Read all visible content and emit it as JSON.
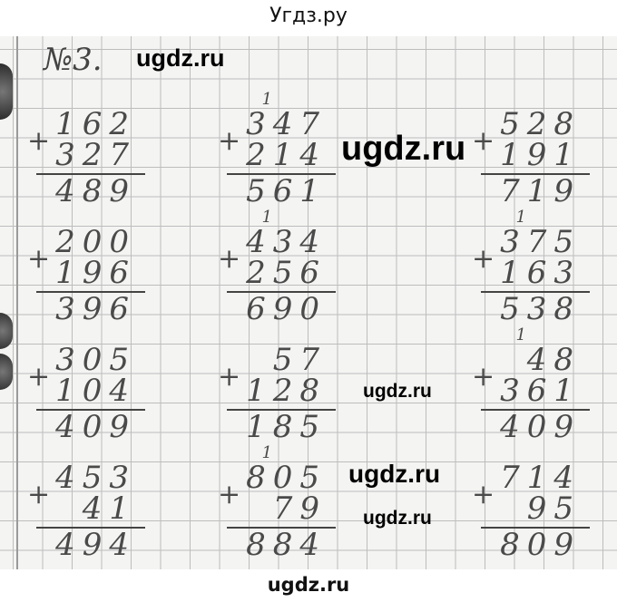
{
  "header": {
    "title": "Угдз.ру"
  },
  "footer": {
    "watermark": "ugdz.ru"
  },
  "task_number": "№3.",
  "watermarks": [
    "ugdz.ru",
    "ugdz.ru",
    "ugdz.ru",
    "ugdz.ru",
    "ugdz.ru"
  ],
  "problems": [
    {
      "carry": "",
      "a": "162",
      "b": "327",
      "result": "489"
    },
    {
      "carry": "1",
      "a": "347",
      "b": "214",
      "result": "561"
    },
    {
      "carry": "",
      "a": "528",
      "b": "191",
      "result": "719"
    },
    {
      "carry": "",
      "a": "200",
      "b": "196",
      "result": "396"
    },
    {
      "carry": "1",
      "a": "434",
      "b": "256",
      "result": "690"
    },
    {
      "carry": "1",
      "a": "375",
      "b": "163",
      "result": "538"
    },
    {
      "carry": "",
      "a": "305",
      "b": "104",
      "result": "409"
    },
    {
      "carry": "",
      "a": "57",
      "b": "128",
      "result": "185"
    },
    {
      "carry": "1",
      "a": "48",
      "b": "361",
      "result": "409"
    },
    {
      "carry": "",
      "a": "453",
      "b": "41",
      "result": "494"
    },
    {
      "carry": "1",
      "a": "805",
      "b": "79",
      "result": "884"
    },
    {
      "carry": "",
      "a": "714",
      "b": "95",
      "result": "809"
    }
  ]
}
